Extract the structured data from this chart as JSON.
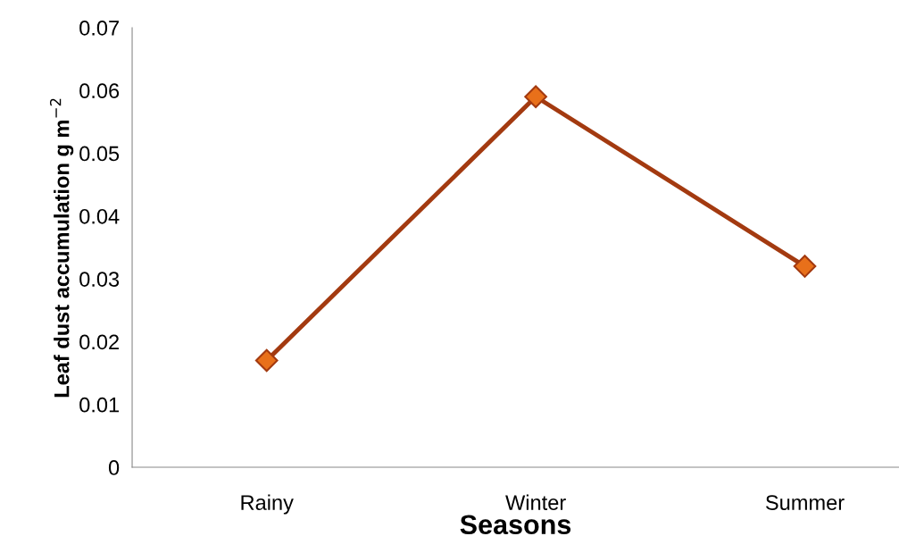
{
  "chart_data": {
    "type": "line",
    "xlabel": "Seasons",
    "ylabel": "Leaf dust accumulation g m$^{−2}$",
    "categories": [
      "Rainy",
      "Winter",
      "Summer"
    ],
    "series": [
      {
        "color": "#a33a10",
        "values": [
          0.017,
          0.059,
          0.032
        ]
      }
    ],
    "ylim": [
      0,
      0.07
    ],
    "yticks": [
      0,
      0.01,
      0.02,
      0.03,
      0.04,
      0.05,
      0.06,
      0.07
    ],
    "marker": "diamond",
    "line_style": "solid",
    "grid": false,
    "legend": false
  }
}
